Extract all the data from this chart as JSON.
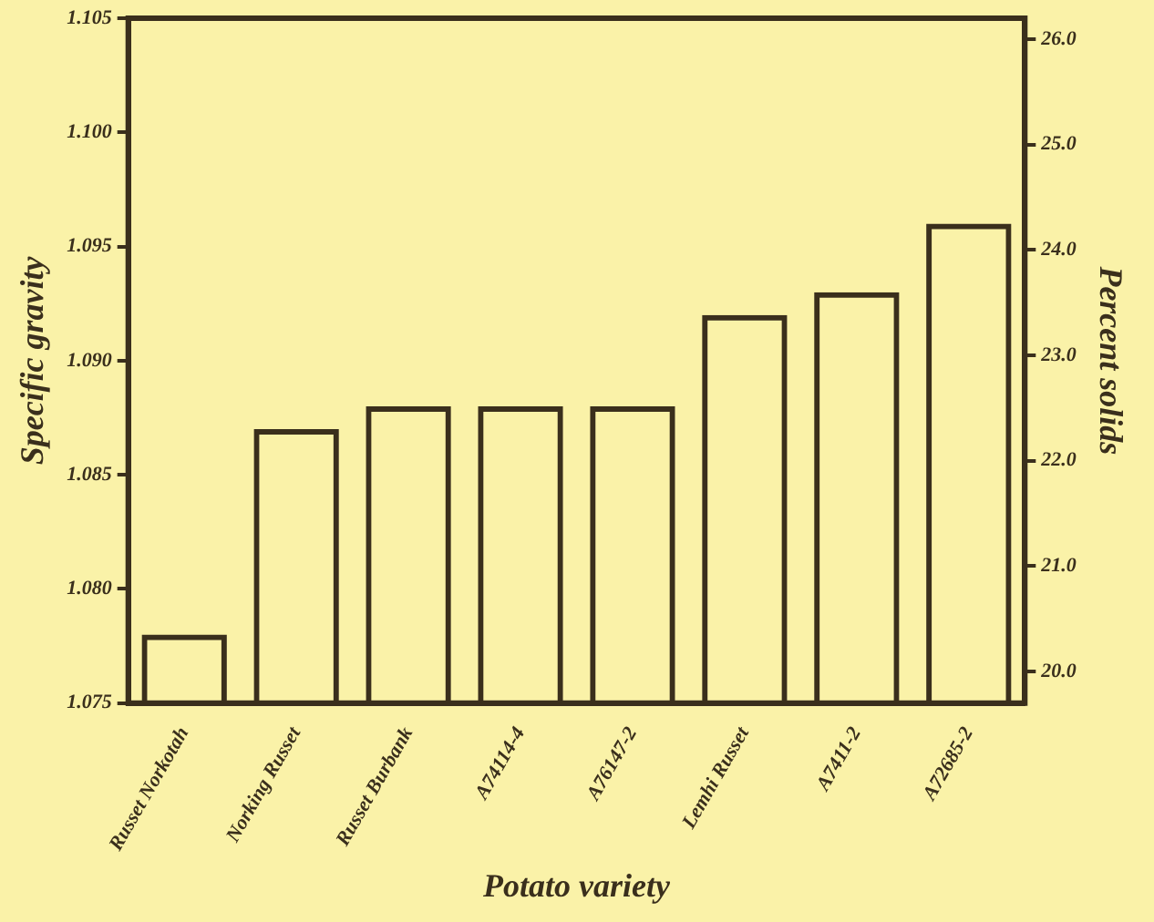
{
  "chart_data": {
    "type": "bar",
    "xlabel": "Potato variety",
    "ylabel": "Specific gravity",
    "y2label": "Percent solids",
    "categories": [
      "Russet Norkotah",
      "Norking Russet",
      "Russet Burbank",
      "A74114-4",
      "A76147-2",
      "Lemhi Russet",
      "A7411-2",
      "A72685-2"
    ],
    "values": [
      1.078,
      1.087,
      1.088,
      1.088,
      1.088,
      1.092,
      1.093,
      1.096
    ],
    "color": "#3a2f1c",
    "ylim": [
      1.075,
      1.105
    ],
    "yticks": [
      {
        "value": 1.075,
        "label": "1.075"
      },
      {
        "value": 1.08,
        "label": "1.080"
      },
      {
        "value": 1.085,
        "label": "1.085"
      },
      {
        "value": 1.09,
        "label": "1.090"
      },
      {
        "value": 1.095,
        "label": "1.095"
      },
      {
        "value": 1.1,
        "label": "1.100"
      },
      {
        "value": 1.105,
        "label": "1.105"
      }
    ],
    "y2lim": [
      19.7,
      26.2
    ],
    "y2ticks": [
      {
        "value": 20,
        "label": "20.0"
      },
      {
        "value": 21,
        "label": "21.0"
      },
      {
        "value": 22,
        "label": "22.0"
      },
      {
        "value": 23,
        "label": "23.0"
      },
      {
        "value": 24,
        "label": "24.0"
      },
      {
        "value": 25,
        "label": "25.0"
      },
      {
        "value": 26,
        "label": "26.0"
      }
    ],
    "grid": false,
    "legend": false
  }
}
